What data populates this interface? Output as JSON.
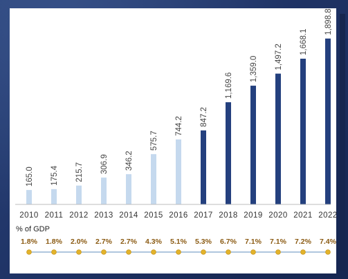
{
  "chart_data": {
    "type": "bar",
    "title": "",
    "xlabel": "",
    "ylabel": "",
    "categories": [
      "2010",
      "2011",
      "2012",
      "2013",
      "2014",
      "2015",
      "2016",
      "2017",
      "2018",
      "2019",
      "2020",
      "2021",
      "2022"
    ],
    "values": [
      165.0,
      175.4,
      215.7,
      306.9,
      346.2,
      575.7,
      744.2,
      847.2,
      1169.6,
      1359.0,
      1497.2,
      1668.1,
      1898.8
    ],
    "value_labels": [
      "165.0",
      "175.4",
      "215.7",
      "306.9",
      "346.2",
      "575.7",
      "744.2",
      "847.2",
      "1,169.6",
      "1,359.0",
      "1,497.2",
      "1,668.1",
      "1,898.8"
    ],
    "ylim": [
      0,
      2000
    ],
    "grid": false,
    "colors": {
      "historic": "#c5d9ee",
      "recent": "#24407e",
      "line": "#7ea3c9",
      "marker": "#e3b32b",
      "axis": "#bdbdbd"
    },
    "recent_from_index": 7,
    "secondary": {
      "title": "% of GDP",
      "labels": [
        "1.8%",
        "1.8%",
        "2.0%",
        "2.7%",
        "2.7%",
        "4.3%",
        "5.1%",
        "5.3%",
        "6.7%",
        "7.1%",
        "7.1%",
        "7.2%",
        "7.4%"
      ]
    }
  }
}
